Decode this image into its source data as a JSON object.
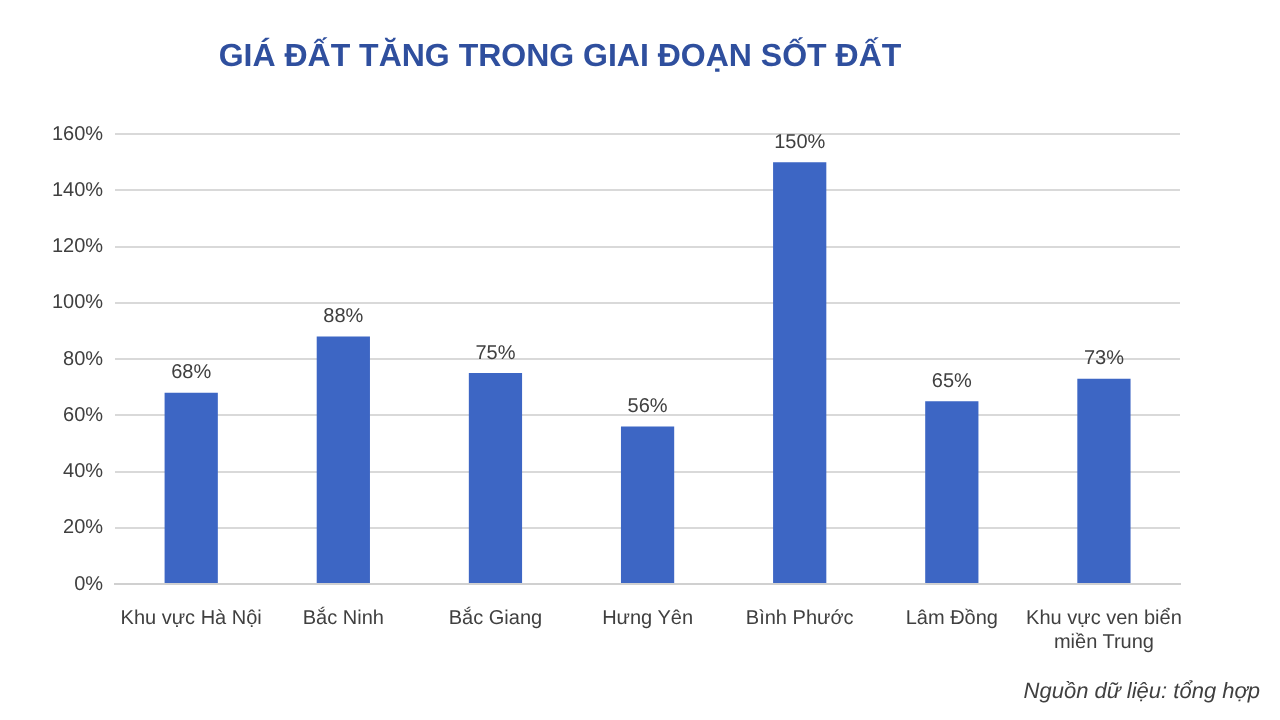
{
  "chart_data": {
    "type": "bar",
    "title": "GIÁ ĐẤT TĂNG TRONG GIAI ĐOẠN SỐT ĐẤT",
    "categories": [
      "Khu vực Hà Nội",
      "Bắc Ninh",
      "Bắc Giang",
      "Hưng Yên",
      "Bình Phước",
      "Lâm Đồng",
      "Khu vực ven biển miền Trung"
    ],
    "values": [
      68,
      88,
      75,
      56,
      150,
      65,
      73
    ],
    "value_labels": [
      "68%",
      "88%",
      "75%",
      "56%",
      "150%",
      "65%",
      "73%"
    ],
    "color": "#3d66c4",
    "ylim": [
      0,
      160
    ],
    "yticks": [
      {
        "value": 0,
        "label": "0%"
      },
      {
        "value": 20,
        "label": "20%"
      },
      {
        "value": 40,
        "label": "40%"
      },
      {
        "value": 60,
        "label": "60%"
      },
      {
        "value": 80,
        "label": "80%"
      },
      {
        "value": 100,
        "label": "100%"
      },
      {
        "value": 120,
        "label": "120%"
      },
      {
        "value": 140,
        "label": "140%"
      },
      {
        "value": 160,
        "label": "160%"
      }
    ],
    "grid": "y",
    "annotations": [
      "Nguồn dữ liệu: tổng hợp"
    ]
  }
}
